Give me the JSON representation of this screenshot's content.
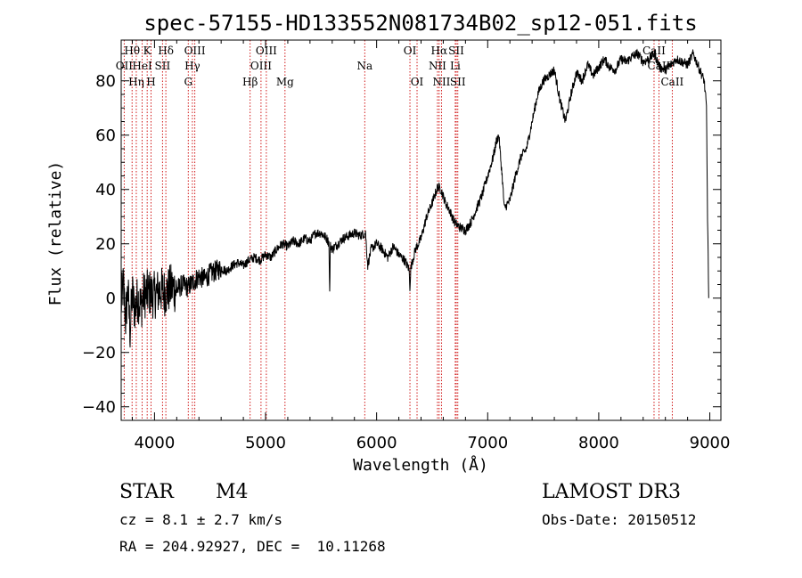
{
  "chart_data": {
    "type": "line",
    "title": "spec-57155-HD133552N081734B02_sp12-051.fits",
    "xlabel": "Wavelength (Å)",
    "ylabel": "Flux (relative)",
    "xlim": [
      3700,
      9100
    ],
    "ylim": [
      -45,
      95
    ],
    "xticks": [
      4000,
      5000,
      6000,
      7000,
      8000,
      9000
    ],
    "yticks": [
      -40,
      -20,
      0,
      20,
      40,
      60,
      80
    ],
    "series": [
      {
        "name": "spectrum",
        "anchors": [
          [
            3700,
            -2
          ],
          [
            3720,
            5
          ],
          [
            3740,
            -8
          ],
          [
            3760,
            3
          ],
          [
            3780,
            -12
          ],
          [
            3800,
            2
          ],
          [
            3820,
            -4
          ],
          [
            3850,
            0
          ],
          [
            3880,
            -3
          ],
          [
            3900,
            1
          ],
          [
            3950,
            2
          ],
          [
            4000,
            1
          ],
          [
            4050,
            3
          ],
          [
            4100,
            2
          ],
          [
            4150,
            4
          ],
          [
            4200,
            3
          ],
          [
            4250,
            5
          ],
          [
            4300,
            4
          ],
          [
            4350,
            6
          ],
          [
            4400,
            8
          ],
          [
            4450,
            7
          ],
          [
            4500,
            9
          ],
          [
            4550,
            10
          ],
          [
            4600,
            11
          ],
          [
            4650,
            10
          ],
          [
            4700,
            12
          ],
          [
            4750,
            13
          ],
          [
            4800,
            12
          ],
          [
            4850,
            14
          ],
          [
            4900,
            15
          ],
          [
            4950,
            14
          ],
          [
            5000,
            16
          ],
          [
            5050,
            15
          ],
          [
            5100,
            18
          ],
          [
            5150,
            20
          ],
          [
            5200,
            19
          ],
          [
            5250,
            21
          ],
          [
            5300,
            20
          ],
          [
            5350,
            22
          ],
          [
            5400,
            21
          ],
          [
            5450,
            24
          ],
          [
            5500,
            24
          ],
          [
            5550,
            22
          ],
          [
            5600,
            18
          ],
          [
            5650,
            20
          ],
          [
            5700,
            22
          ],
          [
            5750,
            23
          ],
          [
            5800,
            24
          ],
          [
            5850,
            23
          ],
          [
            5900,
            24
          ],
          [
            5920,
            12
          ],
          [
            5950,
            18
          ],
          [
            6000,
            20
          ],
          [
            6050,
            18
          ],
          [
            6100,
            15
          ],
          [
            6150,
            19
          ],
          [
            6200,
            16
          ],
          [
            6250,
            14
          ],
          [
            6300,
            10
          ],
          [
            6350,
            18
          ],
          [
            6400,
            22
          ],
          [
            6450,
            30
          ],
          [
            6500,
            35
          ],
          [
            6550,
            41
          ],
          [
            6580,
            40
          ],
          [
            6620,
            35
          ],
          [
            6650,
            33
          ],
          [
            6700,
            28
          ],
          [
            6750,
            26
          ],
          [
            6800,
            25
          ],
          [
            6850,
            28
          ],
          [
            6900,
            33
          ],
          [
            6950,
            38
          ],
          [
            7000,
            45
          ],
          [
            7050,
            52
          ],
          [
            7080,
            58
          ],
          [
            7100,
            60
          ],
          [
            7130,
            45
          ],
          [
            7150,
            33
          ],
          [
            7200,
            36
          ],
          [
            7250,
            45
          ],
          [
            7300,
            52
          ],
          [
            7350,
            55
          ],
          [
            7400,
            65
          ],
          [
            7450,
            75
          ],
          [
            7500,
            80
          ],
          [
            7550,
            82
          ],
          [
            7600,
            84
          ],
          [
            7650,
            73
          ],
          [
            7700,
            65
          ],
          [
            7750,
            75
          ],
          [
            7800,
            83
          ],
          [
            7850,
            80
          ],
          [
            7900,
            86
          ],
          [
            7950,
            82
          ],
          [
            8000,
            85
          ],
          [
            8050,
            88
          ],
          [
            8100,
            85
          ],
          [
            8150,
            84
          ],
          [
            8200,
            88
          ],
          [
            8250,
            87
          ],
          [
            8300,
            89
          ],
          [
            8350,
            90
          ],
          [
            8400,
            87
          ],
          [
            8450,
            88
          ],
          [
            8500,
            90
          ],
          [
            8550,
            85
          ],
          [
            8600,
            84
          ],
          [
            8650,
            86
          ],
          [
            8700,
            88
          ],
          [
            8750,
            87
          ],
          [
            8800,
            86
          ],
          [
            8850,
            90
          ],
          [
            8900,
            85
          ],
          [
            8950,
            80
          ],
          [
            8970,
            70
          ],
          [
            8980,
            30
          ],
          [
            8990,
            0
          ]
        ],
        "features": [
          {
            "center": 5577,
            "depth": -20,
            "width": 6
          },
          {
            "center": 6300,
            "depth": -6,
            "width": 8
          }
        ]
      }
    ],
    "lines": [
      {
        "label": "Hθ",
        "wavelength": 3798,
        "row": 1
      },
      {
        "label": "OII",
        "wavelength": 3727,
        "row": 2
      },
      {
        "label": "Hη",
        "wavelength": 3836,
        "row": 3
      },
      {
        "label": "HeI",
        "wavelength": 3889,
        "row": 2
      },
      {
        "label": "K",
        "wavelength": 3934,
        "row": 1
      },
      {
        "label": "H",
        "wavelength": 3969,
        "row": 3
      },
      {
        "label": "SII",
        "wavelength": 4072,
        "row": 2
      },
      {
        "label": "Hδ",
        "wavelength": 4102,
        "row": 1
      },
      {
        "label": "G",
        "wavelength": 4304,
        "row": 3
      },
      {
        "label": "Hγ",
        "wavelength": 4341,
        "row": 2
      },
      {
        "label": "OIII",
        "wavelength": 4363,
        "row": 1
      },
      {
        "label": "Hβ",
        "wavelength": 4861,
        "row": 3
      },
      {
        "label": "OIII",
        "wavelength": 4959,
        "row": 2
      },
      {
        "label": "OIII",
        "wavelength": 5007,
        "row": 1
      },
      {
        "label": "Mg",
        "wavelength": 5175,
        "row": 3
      },
      {
        "label": "Na",
        "wavelength": 5893,
        "row": 2
      },
      {
        "label": "OI",
        "wavelength": 6300,
        "row": 1
      },
      {
        "label": "OI",
        "wavelength": 6364,
        "row": 3
      },
      {
        "label": "NII",
        "wavelength": 6548,
        "row": 2
      },
      {
        "label": "Hα",
        "wavelength": 6563,
        "row": 1
      },
      {
        "label": "NII",
        "wavelength": 6584,
        "row": 3
      },
      {
        "label": "Li",
        "wavelength": 6708,
        "row": 2
      },
      {
        "label": "SII",
        "wavelength": 6717,
        "row": 1
      },
      {
        "label": "SII",
        "wavelength": 6731,
        "row": 3
      },
      {
        "label": "CaII",
        "wavelength": 8498,
        "row": 1
      },
      {
        "label": "CaII",
        "wavelength": 8542,
        "row": 2
      },
      {
        "label": "CaII",
        "wavelength": 8662,
        "row": 3
      }
    ]
  },
  "info": {
    "object_class": "STAR",
    "subclass": "M4",
    "survey": "LAMOST DR3",
    "cz": "cz = 8.1 ± 2.7 km/s",
    "obs_date": "Obs-Date: 20150512",
    "coords": "RA = 204.92927, DEC =  10.11268"
  },
  "colors": {
    "line_marker": "#cc0000",
    "spectrum": "#000000",
    "axes": "#000000"
  }
}
